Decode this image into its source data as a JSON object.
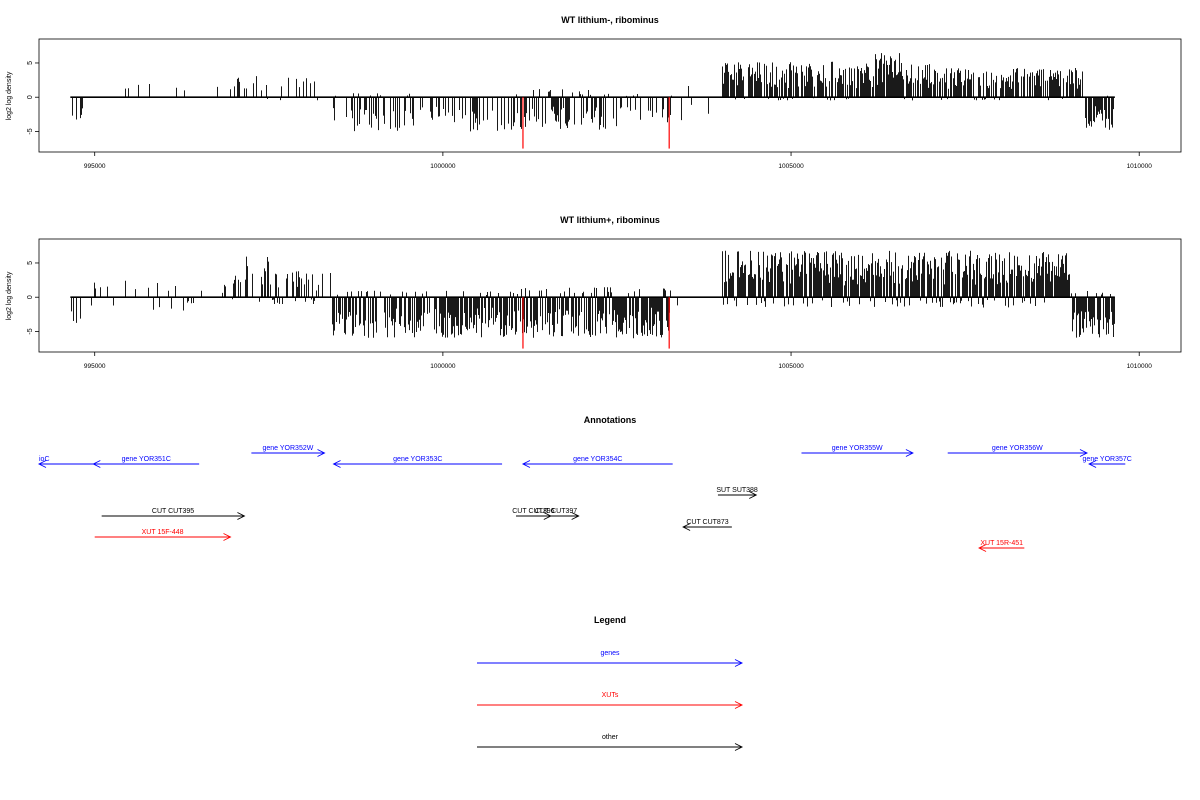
{
  "chart_data": [
    {
      "type": "bar",
      "title": "WT lithium-, ribominus",
      "ylabel": "log2 log density",
      "xlim": [
        994200,
        1010600
      ],
      "ylim": [
        -8,
        8.5
      ],
      "x_ticks": [
        995000,
        1000000,
        1005000,
        1010000
      ],
      "y_ticks": [
        -5,
        0,
        5
      ],
      "baseline_range": [
        994650,
        1009650
      ],
      "highlight_color": "#ff0000",
      "bar_color": "#000000",
      "segments": [
        {
          "start": 994650,
          "end": 994850,
          "density": 0.35,
          "pos_max": 0.0,
          "neg_max": 3.5
        },
        {
          "start": 994850,
          "end": 996200,
          "density": 0.03,
          "pos_max": 2.5,
          "neg_max": 0.0
        },
        {
          "start": 996200,
          "end": 996900,
          "density": 0.06,
          "pos_max": 2.0,
          "neg_max": 0.0
        },
        {
          "start": 996900,
          "end": 997400,
          "density": 0.35,
          "pos_max": 3.2,
          "neg_max": 0.0
        },
        {
          "start": 997400,
          "end": 998000,
          "density": 0.2,
          "pos_max": 3.0,
          "neg_max": 0.5
        },
        {
          "start": 998000,
          "end": 998350,
          "density": 0.12,
          "pos_max": 3.2,
          "neg_max": 0.5
        },
        {
          "start": 998350,
          "end": 1001100,
          "density": 0.45,
          "pos_max": 0.6,
          "neg_max": 5.0
        },
        {
          "start": 1001100,
          "end": 1002500,
          "density": 0.6,
          "pos_max": 1.2,
          "neg_max": 4.8
        },
        {
          "start": 1002500,
          "end": 1003300,
          "density": 0.4,
          "pos_max": 0.5,
          "neg_max": 3.8
        },
        {
          "start": 1003300,
          "end": 1004000,
          "density": 0.08,
          "pos_max": 2.8,
          "neg_max": 4.2
        },
        {
          "start": 1004000,
          "end": 1006200,
          "density": 0.85,
          "pos_max": 5.2,
          "neg_max": 0.5
        },
        {
          "start": 1006200,
          "end": 1006600,
          "density": 0.85,
          "pos_max": 6.5,
          "neg_max": 0.5
        },
        {
          "start": 1006600,
          "end": 1007000,
          "density": 0.6,
          "pos_max": 5.0,
          "neg_max": 0.5
        },
        {
          "start": 1007000,
          "end": 1009200,
          "density": 0.8,
          "pos_max": 4.3,
          "neg_max": 0.5
        },
        {
          "start": 1009200,
          "end": 1009650,
          "density": 0.8,
          "pos_max": 0.5,
          "neg_max": 4.8
        }
      ],
      "highlights": [
        {
          "x": 1001150,
          "y": -7.5
        },
        {
          "x": 1003250,
          "y": -7.5
        }
      ]
    },
    {
      "type": "bar",
      "title": "WT lithium+, ribominus",
      "ylabel": "log2 log density",
      "xlim": [
        994200,
        1010600
      ],
      "ylim": [
        -8,
        8.5
      ],
      "x_ticks": [
        995000,
        1000000,
        1005000,
        1010000
      ],
      "y_ticks": [
        -5,
        0,
        5
      ],
      "baseline_range": [
        994650,
        1009650
      ],
      "highlight_color": "#ff0000",
      "bar_color": "#000000",
      "segments": [
        {
          "start": 994650,
          "end": 994850,
          "density": 0.45,
          "pos_max": 0.0,
          "neg_max": 3.8
        },
        {
          "start": 994850,
          "end": 996300,
          "density": 0.12,
          "pos_max": 2.5,
          "neg_max": 2.0
        },
        {
          "start": 996300,
          "end": 996900,
          "density": 0.15,
          "pos_max": 2.0,
          "neg_max": 1.0
        },
        {
          "start": 996900,
          "end": 997500,
          "density": 0.6,
          "pos_max": 6.0,
          "neg_max": 0.8
        },
        {
          "start": 997500,
          "end": 998400,
          "density": 0.5,
          "pos_max": 3.8,
          "neg_max": 1.0
        },
        {
          "start": 998400,
          "end": 1001100,
          "density": 0.85,
          "pos_max": 1.0,
          "neg_max": 6.0
        },
        {
          "start": 1001100,
          "end": 1003300,
          "density": 0.9,
          "pos_max": 1.5,
          "neg_max": 6.0
        },
        {
          "start": 1003300,
          "end": 1004000,
          "density": 0.1,
          "pos_max": 0.5,
          "neg_max": 3.0
        },
        {
          "start": 1004000,
          "end": 1009000,
          "density": 0.95,
          "pos_max": 6.8,
          "neg_max": 1.5
        },
        {
          "start": 1009000,
          "end": 1009650,
          "density": 0.9,
          "pos_max": 1.0,
          "neg_max": 6.0
        }
      ],
      "highlights": [
        {
          "x": 1001150,
          "y": -7.5
        },
        {
          "x": 1003250,
          "y": -7.5
        }
      ]
    }
  ],
  "annotations": {
    "title": "Annotations",
    "items": [
      {
        "label": "ioC",
        "start": 994200,
        "end": 994980,
        "dir": "left",
        "row": 2,
        "color": "#0000ff",
        "clip_left": true
      },
      {
        "label": "gene YOR351C",
        "start": 994980,
        "end": 996500,
        "dir": "left",
        "row": 2,
        "color": "#0000ff"
      },
      {
        "label": "gene YOR352W",
        "start": 997250,
        "end": 998300,
        "dir": "right",
        "row": 1,
        "color": "#0000ff"
      },
      {
        "label": "gene YOR353C",
        "start": 998430,
        "end": 1000850,
        "dir": "left",
        "row": 2,
        "color": "#0000ff"
      },
      {
        "label": "gene YOR354C",
        "start": 1001150,
        "end": 1003300,
        "dir": "left",
        "row": 2,
        "color": "#0000ff"
      },
      {
        "label": "gene YOR355W",
        "start": 1005150,
        "end": 1006750,
        "dir": "right",
        "row": 1,
        "color": "#0000ff"
      },
      {
        "label": "gene YOR356W",
        "start": 1007250,
        "end": 1009250,
        "dir": "right",
        "row": 1,
        "color": "#0000ff"
      },
      {
        "label": "gene YOR357C",
        "start": 1009280,
        "end": 1009800,
        "dir": "left",
        "row": 2,
        "color": "#0000ff"
      },
      {
        "label": "SUT SUT388",
        "start": 1003950,
        "end": 1004500,
        "dir": "right",
        "row": 3,
        "color": "#000000"
      },
      {
        "label": "CUT CUT395",
        "start": 995100,
        "end": 997150,
        "dir": "right",
        "row": 4,
        "color": "#000000"
      },
      {
        "label": "CUT CUT396",
        "start": 1001050,
        "end": 1001550,
        "dir": "right",
        "row": 4,
        "color": "#000000"
      },
      {
        "label": "CUT CUT397",
        "start": 1001300,
        "end": 1001950,
        "dir": "right",
        "row": 4,
        "color": "#000000"
      },
      {
        "label": "CUT CUT873",
        "start": 1003450,
        "end": 1004150,
        "dir": "left",
        "row": 5,
        "color": "#000000"
      },
      {
        "label": "XUT 15F-448",
        "start": 995000,
        "end": 996950,
        "dir": "right",
        "row": 6,
        "color": "#ff0000"
      },
      {
        "label": "XUT 15R-451",
        "start": 1007700,
        "end": 1008350,
        "dir": "left",
        "row": 7,
        "color": "#ff0000"
      }
    ]
  },
  "legend": {
    "title": "Legend",
    "items": [
      {
        "label": "genes",
        "color": "#0000ff"
      },
      {
        "label": "XUTs",
        "color": "#ff0000"
      },
      {
        "label": "other",
        "color": "#000000"
      }
    ]
  }
}
